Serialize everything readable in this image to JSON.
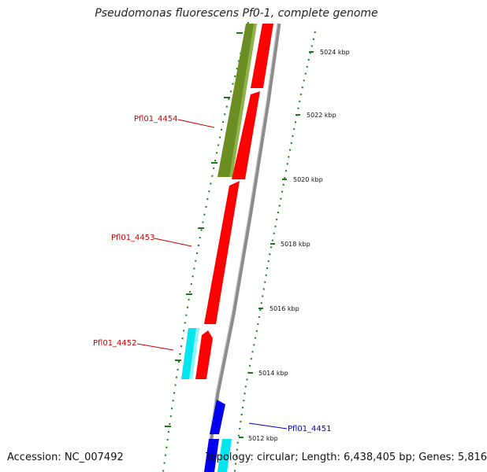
{
  "map": {
    "title": "Pseudomonas fluorescens Pf0-1, complete genome",
    "accession": "Accession: NC_007492",
    "topology": "Topology: circular; Length: 6,438,405 bp; Genes: 5,816"
  },
  "ruler": {
    "labels": [
      "5024 kbp",
      "5022 kbp",
      "5020 kbp",
      "5018 kbp",
      "5016 kbp",
      "5014 kbp",
      "5012 kbp"
    ]
  },
  "genes": [
    {
      "locus": "Pfl01_4454",
      "label_color": "#cc0000"
    },
    {
      "locus": "Pfl01_4453",
      "label_color": "#cc0000"
    },
    {
      "locus": "Pfl01_4452",
      "label_color": "#cc0000"
    },
    {
      "locus": "Pfl01_4451",
      "label_color": "#0000cc"
    }
  ],
  "colors": {
    "backbone": "#8c8c8c",
    "tick": "#1a7a1a",
    "red_feature": "#ff0000",
    "olive_feature": "#6b8e23",
    "cyan_feature": "#00e5ee",
    "blue_feature": "#0000ee"
  }
}
